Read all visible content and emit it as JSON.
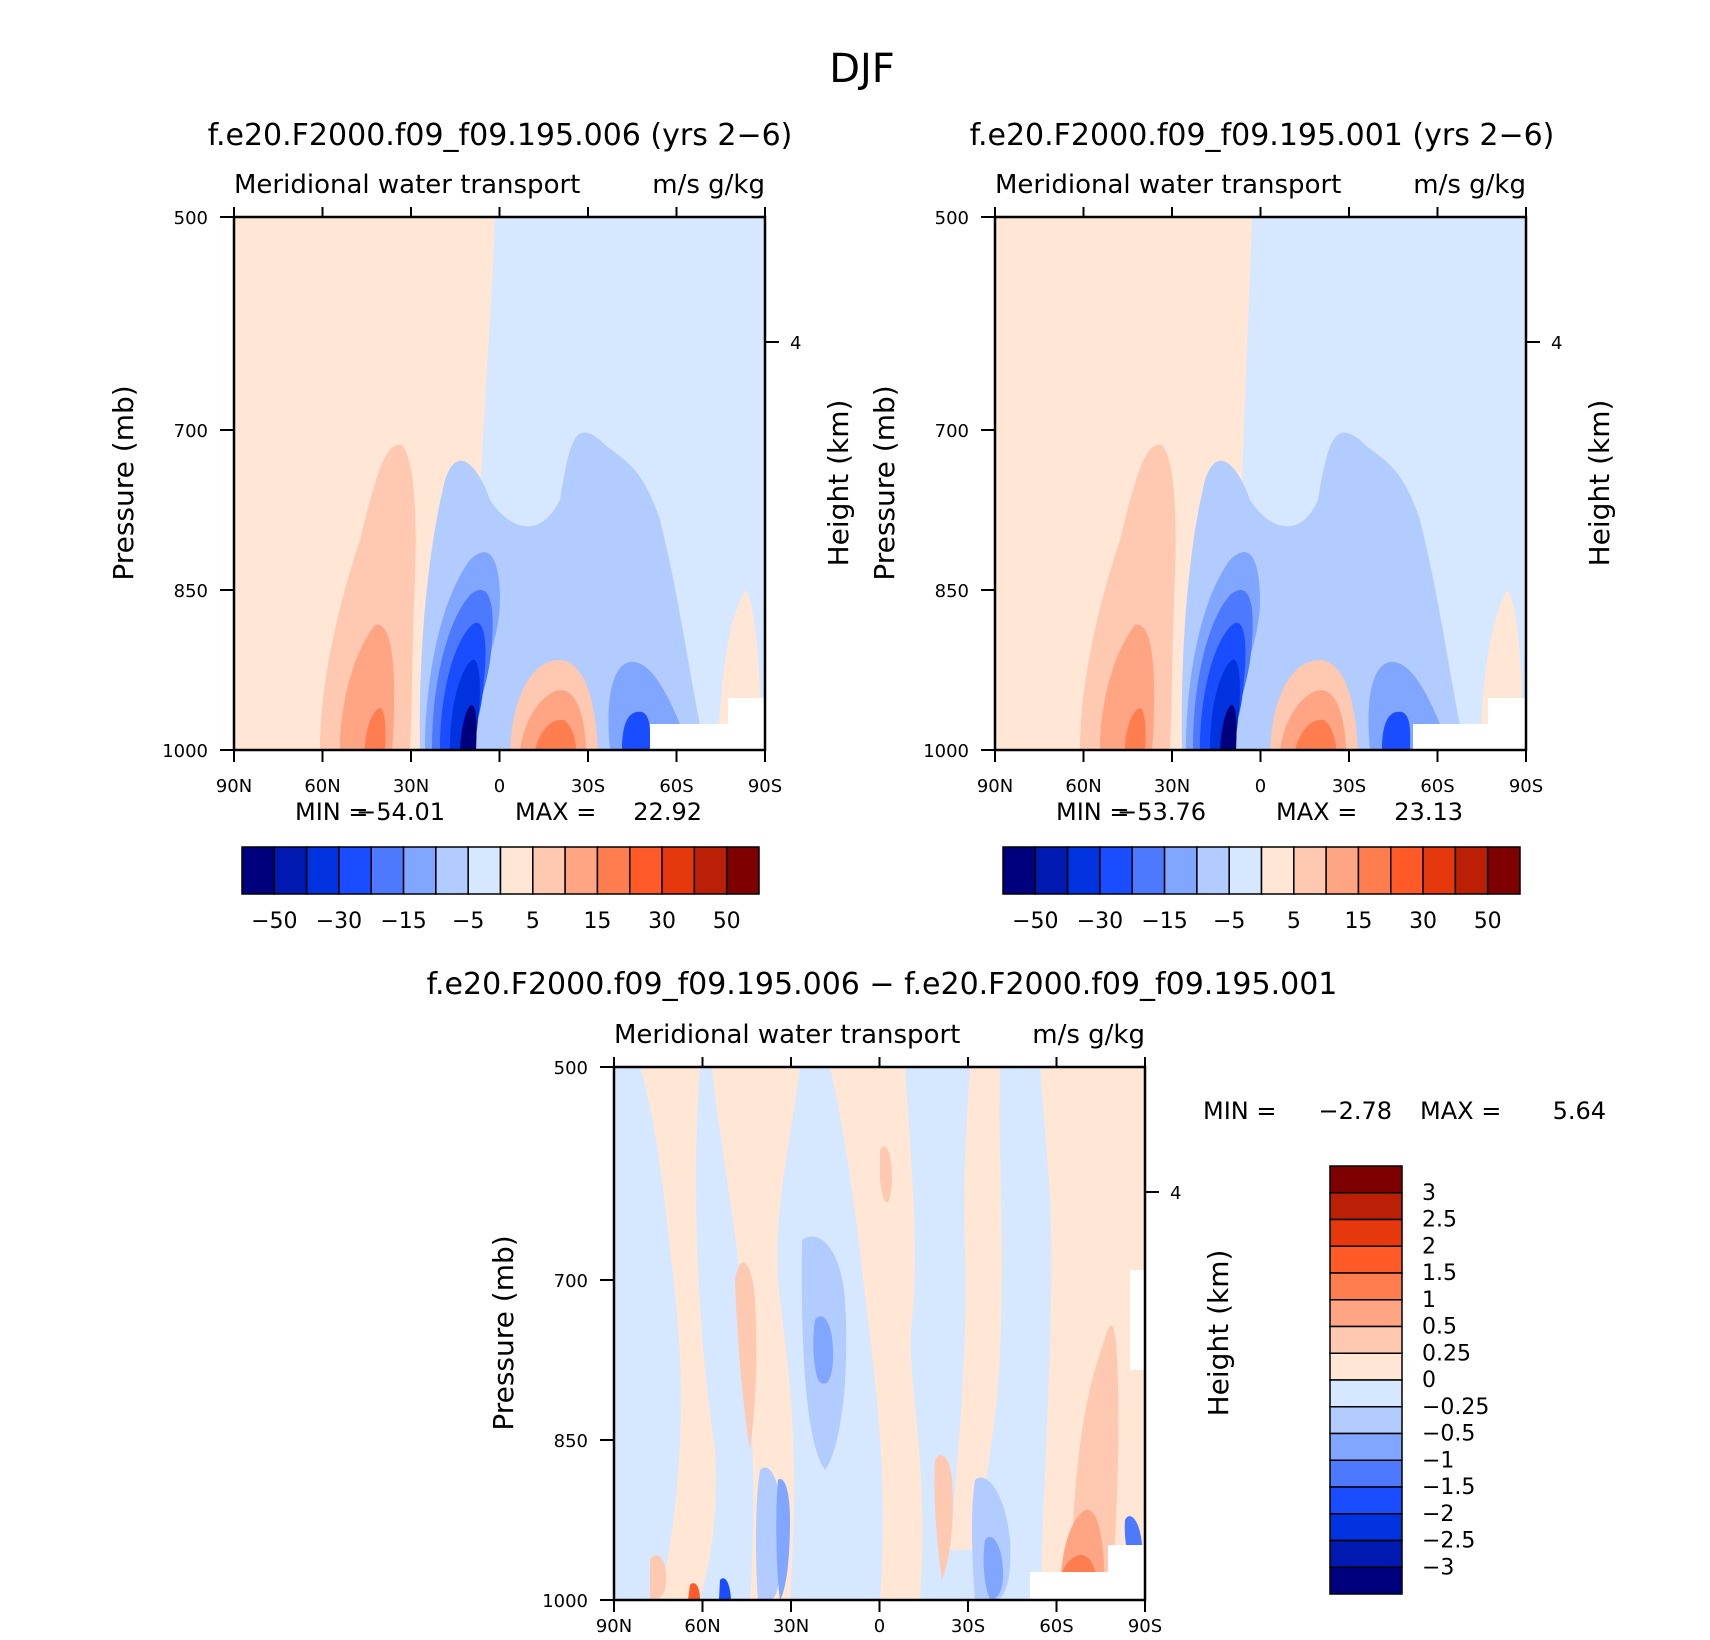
{
  "main_title": "DJF",
  "colors": {
    "neg": [
      "#00007f",
      "#0019b0",
      "#0033e0",
      "#1a4dff",
      "#4d79ff",
      "#80a6ff",
      "#b3ccff",
      "#d6e8ff"
    ],
    "pos": [
      "#ffe6d5",
      "#ffc8b0",
      "#ffa584",
      "#ff7d4e",
      "#ff5a28",
      "#e5380d",
      "#bb2007",
      "#7f0000"
    ],
    "axis": "#000000"
  },
  "chart_data": [
    {
      "type": "contour",
      "title": "f.e20.F2000.f09_f09.195.006 (yrs 2-6)",
      "subtitle_left": "Meridional water transport",
      "subtitle_right": "m/s g/kg",
      "xlabel": "",
      "ylabel": "Pressure (mb)",
      "ylabel_right": "Height (km)",
      "x_ticks": [
        "90N",
        "60N",
        "30N",
        "0",
        "30S",
        "60S",
        "90S"
      ],
      "y_ticks": [
        "500",
        "700",
        "850",
        "1000"
      ],
      "y_ticks_right": [
        "4"
      ],
      "ylim": [
        1000,
        500
      ],
      "stats": {
        "min_label": "MIN =",
        "min": "-54.01",
        "max_label": "MAX =",
        "max": "22.92"
      },
      "colorbar": {
        "orientation": "horizontal",
        "labels": [
          "-50",
          "-30",
          "-15",
          "-5",
          "5",
          "15",
          "30",
          "50"
        ]
      }
    },
    {
      "type": "contour",
      "title": "f.e20.F2000.f09_f09.195.001 (yrs 2-6)",
      "subtitle_left": "Meridional water transport",
      "subtitle_right": "m/s g/kg",
      "xlabel": "",
      "ylabel": "Pressure (mb)",
      "ylabel_right": "Height (km)",
      "x_ticks": [
        "90N",
        "60N",
        "30N",
        "0",
        "30S",
        "60S",
        "90S"
      ],
      "y_ticks": [
        "500",
        "700",
        "850",
        "1000"
      ],
      "y_ticks_right": [
        "4"
      ],
      "ylim": [
        1000,
        500
      ],
      "stats": {
        "min_label": "MIN =",
        "min": "-53.76",
        "max_label": "MAX =",
        "max": "23.13"
      },
      "colorbar": {
        "orientation": "horizontal",
        "labels": [
          "-50",
          "-30",
          "-15",
          "-5",
          "5",
          "15",
          "30",
          "50"
        ]
      }
    },
    {
      "type": "contour",
      "title": "f.e20.F2000.f09_f09.195.006 - f.e20.F2000.f09_f09.195.001",
      "subtitle_left": "Meridional water transport",
      "subtitle_right": "m/s g/kg",
      "xlabel": "",
      "ylabel": "Pressure (mb)",
      "ylabel_right": "Height (km)",
      "x_ticks": [
        "90N",
        "60N",
        "30N",
        "0",
        "30S",
        "60S",
        "90S"
      ],
      "y_ticks": [
        "500",
        "700",
        "850",
        "1000"
      ],
      "y_ticks_right": [
        "4"
      ],
      "ylim": [
        1000,
        500
      ],
      "stats": {
        "min_label": "MIN =",
        "min": "-2.78",
        "max_label": "MAX =",
        "max": "5.64"
      },
      "colorbar": {
        "orientation": "vertical",
        "labels": [
          "3",
          "2.5",
          "2",
          "1.5",
          "1",
          "0.5",
          "0.25",
          "0",
          "-0.25",
          "-0.5",
          "-1",
          "-1.5",
          "-2",
          "-2.5",
          "-3"
        ]
      }
    }
  ]
}
